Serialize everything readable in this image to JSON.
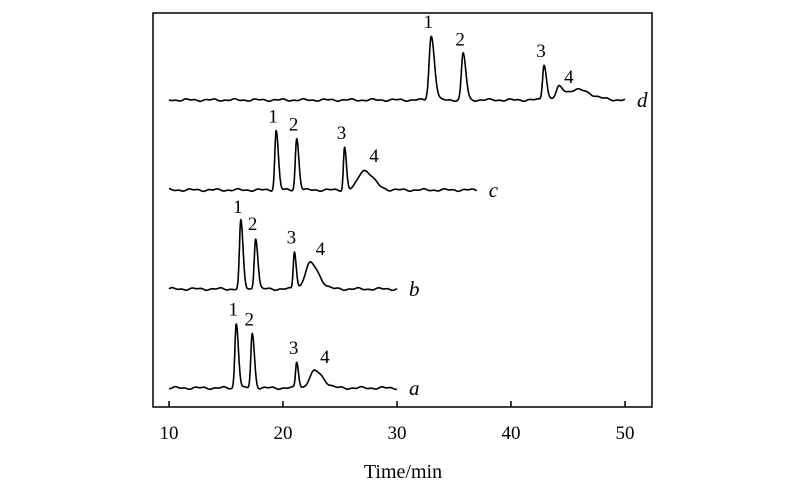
{
  "chart_data": {
    "type": "line",
    "title": "",
    "xlabel": "Time/min",
    "ylabel": "",
    "xlim": [
      10,
      52.5
    ],
    "x_ticks": [
      "10",
      "20",
      "30",
      "40",
      "50"
    ],
    "grid": false,
    "series": [
      {
        "name": "a",
        "end": 30,
        "peaks": [
          {
            "label": "1",
            "t": 15.9,
            "h": 0.95,
            "w": 0.12
          },
          {
            "label": "2",
            "t": 17.3,
            "h": 0.8,
            "w": 0.12
          },
          {
            "label": "3",
            "t": 21.2,
            "h": 0.38,
            "w": 0.1
          },
          {
            "label": "4",
            "t": 22.8,
            "h": 0.25,
            "w": 0.45
          }
        ]
      },
      {
        "name": "b",
        "end": 30,
        "peaks": [
          {
            "label": "1",
            "t": 16.3,
            "h": 1.0,
            "w": 0.12
          },
          {
            "label": "2",
            "t": 17.6,
            "h": 0.75,
            "w": 0.12
          },
          {
            "label": "3",
            "t": 21.0,
            "h": 0.55,
            "w": 0.1
          },
          {
            "label": "4",
            "t": 22.4,
            "h": 0.38,
            "w": 0.45
          }
        ]
      },
      {
        "name": "c",
        "end": 37,
        "peaks": [
          {
            "label": "1",
            "t": 19.4,
            "h": 0.9,
            "w": 0.12
          },
          {
            "label": "2",
            "t": 21.2,
            "h": 0.78,
            "w": 0.12
          },
          {
            "label": "3",
            "t": 25.4,
            "h": 0.65,
            "w": 0.1
          },
          {
            "label": "4",
            "t": 27.1,
            "h": 0.3,
            "w": 0.5
          }
        ]
      },
      {
        "name": "d",
        "end": 50,
        "peaks": [
          {
            "label": "1",
            "t": 33.0,
            "h": 1.0,
            "w": 0.18
          },
          {
            "label": "2",
            "t": 35.8,
            "h": 0.73,
            "w": 0.15
          },
          {
            "label": "3",
            "t": 42.9,
            "h": 0.55,
            "w": 0.13
          },
          {
            "label": "4",
            "t": 44.2,
            "h": 0.14,
            "w": 0.2
          }
        ],
        "hump": {
          "t": 45.8,
          "h": 0.16,
          "w": 1.2
        }
      }
    ]
  }
}
